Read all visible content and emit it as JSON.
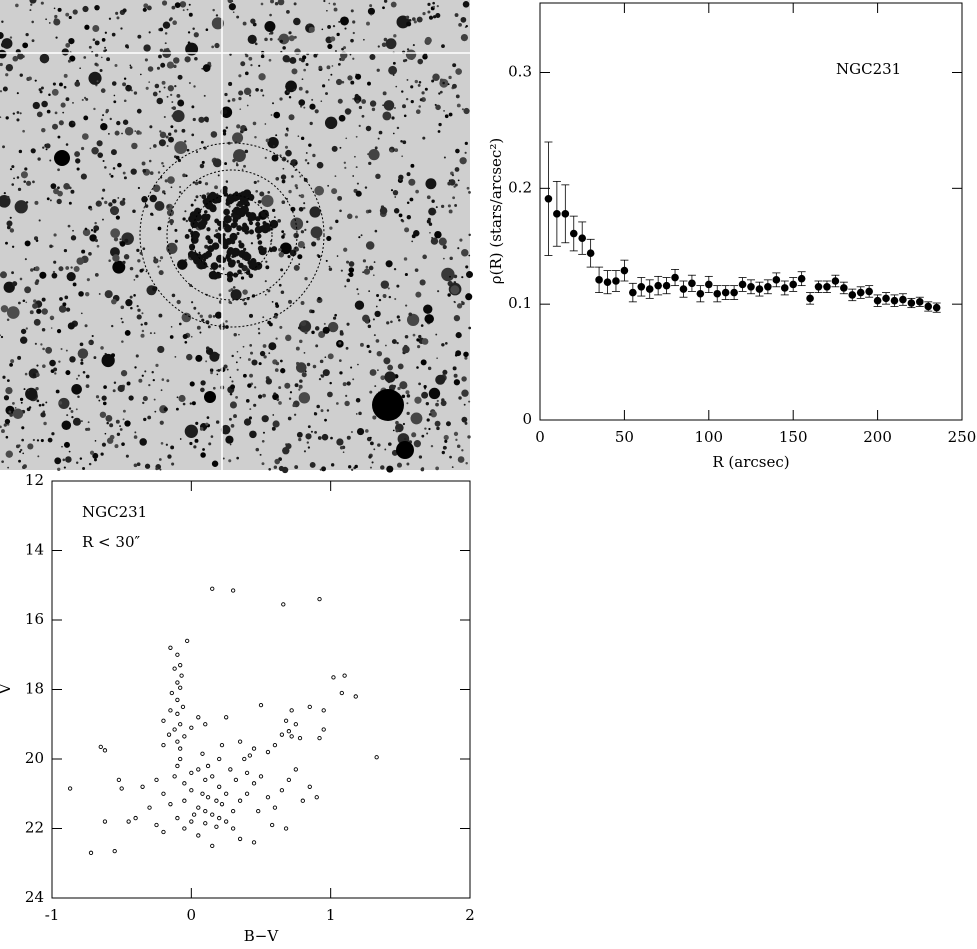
{
  "chart_data": [
    {
      "type": "errorbar",
      "annotation": "NGC231",
      "xlabel": "R (arcsec)",
      "ylabel": "ρ(R)  (stars/arcsec²)",
      "x": [
        5,
        10,
        15,
        20,
        25,
        30,
        35,
        40,
        45,
        50,
        55,
        60,
        65,
        70,
        75,
        80,
        85,
        90,
        95,
        100,
        105,
        110,
        115,
        120,
        125,
        130,
        135,
        140,
        145,
        150,
        155,
        160,
        165,
        170,
        175,
        180,
        185,
        190,
        195,
        200,
        205,
        210,
        215,
        220,
        225,
        230,
        235
      ],
      "values": [
        0.191,
        0.178,
        0.178,
        0.161,
        0.157,
        0.144,
        0.121,
        0.119,
        0.12,
        0.129,
        0.11,
        0.115,
        0.113,
        0.116,
        0.116,
        0.123,
        0.113,
        0.118,
        0.109,
        0.117,
        0.109,
        0.11,
        0.11,
        0.117,
        0.115,
        0.113,
        0.115,
        0.121,
        0.114,
        0.117,
        0.122,
        0.105,
        0.115,
        0.115,
        0.12,
        0.114,
        0.108,
        0.11,
        0.111,
        0.103,
        0.105,
        0.103,
        0.104,
        0.101,
        0.102,
        0.098,
        0.097
      ],
      "errors": [
        0.049,
        0.028,
        0.025,
        0.015,
        0.014,
        0.012,
        0.011,
        0.01,
        0.009,
        0.009,
        0.008,
        0.008,
        0.008,
        0.008,
        0.007,
        0.007,
        0.007,
        0.007,
        0.007,
        0.007,
        0.007,
        0.006,
        0.006,
        0.006,
        0.006,
        0.006,
        0.006,
        0.006,
        0.006,
        0.006,
        0.006,
        0.005,
        0.005,
        0.005,
        0.005,
        0.005,
        0.005,
        0.005,
        0.005,
        0.005,
        0.005,
        0.005,
        0.005,
        0.004,
        0.004,
        0.004,
        0.004
      ],
      "color": "#000000",
      "xlim": [
        0,
        250
      ],
      "xticks": [
        0,
        50,
        100,
        150,
        200,
        250
      ],
      "ylim": [
        0,
        0.36
      ],
      "yticks": [
        0,
        0.1,
        0.2,
        0.3
      ]
    },
    {
      "type": "scatter",
      "annotation": [
        "NGC231",
        "R < 30″"
      ],
      "xlabel": "B−V",
      "ylabel": "V",
      "x": [
        0.15,
        0.3,
        0.66,
        0.92,
        -0.03,
        -0.15,
        -0.1,
        -0.08,
        -0.12,
        -0.07,
        -0.1,
        -0.08,
        -0.14,
        -0.1,
        -0.06,
        -0.15,
        -0.1,
        -0.2,
        -0.08,
        -0.12,
        -0.16,
        -0.05,
        -0.1,
        -0.2,
        -0.08,
        0.0,
        0.05,
        0.1,
        0.5,
        0.72,
        0.68,
        0.75,
        0.7,
        0.65,
        0.78,
        0.72,
        0.6,
        0.85,
        0.95,
        1.02,
        1.1,
        1.08,
        1.18,
        0.92,
        0.95,
        1.33,
        0.55,
        0.45,
        0.35,
        0.25,
        -0.87,
        -0.72,
        -0.55,
        -0.65,
        -0.62,
        -0.62,
        -0.52,
        -0.5,
        -0.45,
        -0.4,
        -0.35,
        -0.3,
        -0.25,
        -0.2,
        -0.1,
        0.0,
        0.05,
        0.1,
        0.15,
        0.2,
        -0.05,
        0.0,
        0.08,
        0.12,
        0.18,
        0.22,
        0.05,
        0.1,
        0.15,
        0.2,
        0.25,
        0.3,
        0.35,
        0.4,
        0.45,
        0.5,
        0.55,
        0.6,
        0.65,
        0.7,
        0.75,
        0.8,
        0.85,
        0.3,
        0.35,
        0.45,
        0.15,
        0.05,
        -0.05,
        -0.1,
        -0.15,
        -0.2,
        -0.25,
        -0.05,
        0.02,
        0.28,
        0.38,
        0.42,
        0.2,
        0.12,
        -0.12,
        0.32,
        0.48,
        0.58,
        0.9,
        0.68,
        0.25,
        0.1,
        0.18,
        0.0,
        -0.08,
        0.22,
        0.08,
        0.4
      ],
      "values": [
        15.1,
        15.15,
        15.55,
        15.4,
        16.6,
        16.8,
        17.0,
        17.3,
        17.4,
        17.6,
        17.8,
        17.95,
        18.1,
        18.3,
        18.5,
        18.6,
        18.7,
        18.9,
        19.0,
        19.15,
        19.3,
        19.35,
        19.5,
        19.6,
        19.7,
        19.1,
        18.8,
        19.0,
        18.45,
        18.6,
        18.9,
        19.0,
        19.2,
        19.3,
        19.4,
        19.35,
        19.6,
        18.5,
        18.6,
        17.65,
        17.6,
        18.1,
        18.2,
        19.4,
        19.15,
        19.95,
        19.8,
        19.7,
        19.5,
        18.8,
        20.85,
        22.7,
        22.65,
        19.65,
        19.75,
        21.8,
        20.6,
        20.85,
        21.8,
        21.7,
        20.8,
        21.4,
        21.9,
        22.1,
        20.2,
        20.4,
        20.3,
        20.6,
        20.5,
        20.8,
        20.7,
        20.9,
        21.0,
        21.1,
        21.2,
        21.3,
        21.4,
        21.5,
        21.6,
        21.7,
        21.8,
        21.5,
        21.2,
        21.0,
        20.7,
        20.5,
        21.1,
        21.4,
        20.9,
        20.6,
        20.3,
        21.2,
        20.8,
        22.0,
        22.3,
        22.4,
        22.5,
        22.2,
        22.0,
        21.7,
        21.3,
        21.0,
        20.6,
        21.2,
        21.6,
        20.3,
        20.0,
        19.9,
        20.0,
        20.2,
        20.5,
        20.6,
        21.5,
        21.9,
        21.1,
        22.0,
        21.0,
        21.85,
        21.95,
        21.8,
        20.0,
        19.6,
        19.85,
        20.4
      ],
      "color": "#000000",
      "xlim": [
        -1,
        2
      ],
      "xticks": [
        -1,
        0,
        1,
        2
      ],
      "ylim": [
        24,
        12
      ],
      "yticks": [
        12,
        14,
        16,
        18,
        20,
        22,
        24
      ]
    }
  ]
}
